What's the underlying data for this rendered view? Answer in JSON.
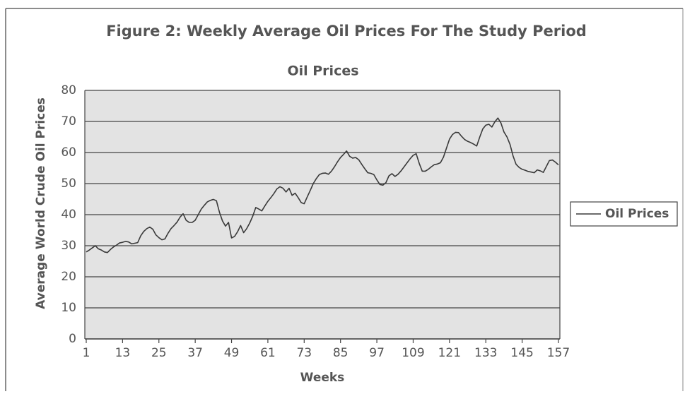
{
  "chart_data": {
    "type": "line",
    "title": "Figure 2: Weekly Average Oil Prices For The Study Period",
    "subtitle": "Oil Prices",
    "x_label": "Weeks",
    "y_label": "Average World Crude Oil Prices",
    "x": [
      1,
      2,
      3,
      4,
      5,
      6,
      7,
      8,
      9,
      10,
      11,
      12,
      13,
      14,
      15,
      16,
      17,
      18,
      19,
      20,
      21,
      22,
      23,
      24,
      25,
      26,
      27,
      28,
      29,
      30,
      31,
      32,
      33,
      34,
      35,
      36,
      37,
      38,
      39,
      40,
      41,
      42,
      43,
      44,
      45,
      46,
      47,
      48,
      49,
      50,
      51,
      52,
      53,
      54,
      55,
      56,
      57,
      58,
      59,
      60,
      61,
      62,
      63,
      64,
      65,
      66,
      67,
      68,
      69,
      70,
      71,
      72,
      73,
      74,
      75,
      76,
      77,
      78,
      79,
      80,
      81,
      82,
      83,
      84,
      85,
      86,
      87,
      88,
      89,
      90,
      91,
      92,
      93,
      94,
      95,
      96,
      97,
      98,
      99,
      100,
      101,
      102,
      103,
      104,
      105,
      106,
      107,
      108,
      109,
      110,
      111,
      112,
      113,
      114,
      115,
      116,
      117,
      118,
      119,
      120,
      121,
      122,
      123,
      124,
      125,
      126,
      127,
      128,
      129,
      130,
      131,
      132,
      133,
      134,
      135,
      136,
      137,
      138,
      139,
      140,
      141,
      142,
      143,
      144,
      145,
      146,
      147,
      148,
      149,
      150,
      151,
      152,
      153,
      154,
      155,
      156,
      157
    ],
    "series": [
      {
        "name": "Oil Prices",
        "color": "#3a3a3a",
        "values": [
          28,
          28.6,
          29.3,
          30,
          29,
          28.6,
          28,
          27.8,
          28.8,
          29.6,
          30.2,
          30.9,
          31.1,
          31.4,
          31.2,
          30.6,
          30.8,
          31,
          33.2,
          34.6,
          35.5,
          36,
          35.3,
          33.5,
          32.6,
          31.9,
          32.2,
          34,
          35.5,
          36.5,
          37.6,
          39.2,
          40.3,
          38.2,
          37.5,
          37.5,
          38.2,
          40,
          41.8,
          43,
          44.1,
          44.6,
          44.9,
          44.5,
          40.8,
          38,
          36.3,
          37.5,
          32.5,
          33,
          34.5,
          36.5,
          34.2,
          35.5,
          37.3,
          39.5,
          42.3,
          41.8,
          41.2,
          42.8,
          44.3,
          45.5,
          46.8,
          48.3,
          49,
          48.5,
          47.3,
          48.5,
          46.2,
          46.9,
          45.5,
          43.9,
          43.5,
          45.7,
          47.8,
          50,
          51.6,
          52.9,
          53.3,
          53.4,
          53,
          54,
          55.4,
          57,
          58.4,
          59.4,
          60.5,
          58.8,
          58.2,
          58.4,
          57.7,
          56.2,
          54.8,
          53.5,
          53.3,
          52.9,
          51.2,
          49.7,
          49.5,
          50.3,
          52.5,
          53.2,
          52.3,
          53,
          54.1,
          55.4,
          56.7,
          58,
          59.1,
          59.6,
          56.5,
          54,
          54,
          54.6,
          55.4,
          56.1,
          56.3,
          56.7,
          58.5,
          61.4,
          64.3,
          65.8,
          66.5,
          66.4,
          65.2,
          64.2,
          63.6,
          63.2,
          62.7,
          62.1,
          65,
          67.6,
          68.8,
          69.1,
          68.2,
          69.9,
          71.1,
          69.5,
          66.6,
          65,
          62.6,
          58.9,
          56.2,
          55.2,
          54.6,
          54.3,
          53.9,
          53.7,
          53.5,
          54.4,
          54.1,
          53.6,
          55.5,
          57.4,
          57.6,
          56.9,
          56
        ]
      }
    ],
    "xlim": [
      1,
      157
    ],
    "xticks": [
      1,
      13,
      25,
      37,
      49,
      61,
      73,
      85,
      97,
      109,
      121,
      133,
      145,
      157
    ],
    "ylim": [
      0,
      80
    ],
    "yticks": [
      0,
      10,
      20,
      30,
      40,
      50,
      60,
      70,
      80
    ],
    "grid": true,
    "legend": "right"
  }
}
